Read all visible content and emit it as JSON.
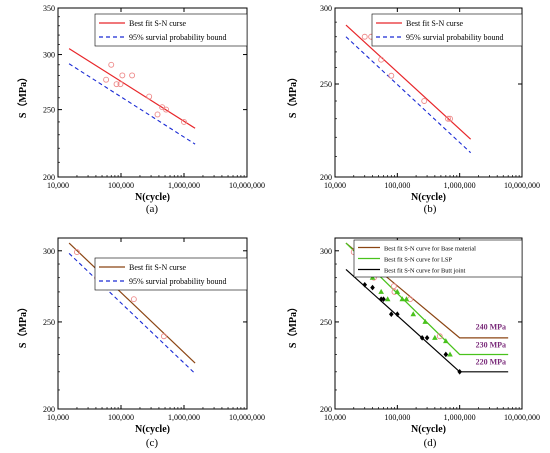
{
  "chart_data": [
    {
      "type": "line",
      "panel_label": "(a)",
      "xlabel": "N(cycle)",
      "ylabel": "S（MPa）",
      "x_scale": "log",
      "y_scale": "log",
      "xlim": [
        10000,
        10000000
      ],
      "ylim": [
        200,
        350
      ],
      "x_ticks": [
        {
          "v": 10000,
          "label": "10,000"
        },
        {
          "v": 100000,
          "label": "100,000"
        },
        {
          "v": 1000000,
          "label": "1,000,000"
        },
        {
          "v": 10000000,
          "label": "10,000,000"
        }
      ],
      "y_ticks": [
        {
          "v": 200,
          "label": "200"
        },
        {
          "v": 250,
          "label": "250"
        },
        {
          "v": 300,
          "label": "300"
        },
        {
          "v": 350,
          "label": "350"
        }
      ],
      "legend_position": "top-right",
      "series": [
        {
          "name": "Best fit S-N curse",
          "kind": "line",
          "style": "solid",
          "color": "#e8262a",
          "x": [
            15000,
            1500000
          ],
          "y": [
            306,
            235
          ]
        },
        {
          "name": "95% survial probability bound",
          "kind": "line",
          "style": "dashed",
          "color": "#1a2ad4",
          "x": [
            15000,
            1500000
          ],
          "y": [
            291,
            223
          ]
        },
        {
          "name": "",
          "kind": "scatter",
          "marker": "circle-open",
          "color": "#ee8a8a",
          "x": [
            58000,
            70000,
            85000,
            98000,
            105000,
            150000,
            280000,
            380000,
            450000,
            520000,
            1000000
          ],
          "y": [
            276,
            290,
            272,
            272,
            280,
            280,
            261,
            246,
            252,
            250,
            240
          ]
        }
      ]
    },
    {
      "type": "line",
      "panel_label": "(b)",
      "xlabel": "N(cycle)",
      "ylabel": "S（MPa）",
      "x_scale": "log",
      "y_scale": "log",
      "xlim": [
        10000,
        10000000
      ],
      "ylim": [
        200,
        300
      ],
      "x_ticks": [
        {
          "v": 10000,
          "label": "10,000"
        },
        {
          "v": 100000,
          "label": "100,000"
        },
        {
          "v": 1000000,
          "label": "1,000,000"
        },
        {
          "v": 10000000,
          "label": "10,000,000"
        }
      ],
      "y_ticks": [
        {
          "v": 200,
          "label": "200"
        },
        {
          "v": 250,
          "label": "250"
        },
        {
          "v": 300,
          "label": "300"
        }
      ],
      "legend_position": "top-right",
      "series": [
        {
          "name": "Best fit S-N curse",
          "kind": "line",
          "style": "solid",
          "color": "#e8262a",
          "x": [
            15000,
            1500000
          ],
          "y": [
            288,
            219
          ]
        },
        {
          "name": "95% survial probability bound",
          "kind": "line",
          "style": "dashed",
          "color": "#1a2ad4",
          "x": [
            15000,
            1500000
          ],
          "y": [
            280,
            212
          ]
        },
        {
          "name": "",
          "kind": "scatter",
          "marker": "circle-open",
          "color": "#ee8a8a",
          "x": [
            30000,
            38000,
            55000,
            80000,
            270000,
            650000,
            700000
          ],
          "y": [
            280,
            280,
            265,
            255,
            240,
            230,
            230
          ]
        }
      ]
    },
    {
      "type": "line",
      "panel_label": "(c)",
      "xlabel": "N(cycle)",
      "ylabel": "S（MPa）",
      "x_scale": "log",
      "y_scale": "log",
      "xlim": [
        10000,
        10000000
      ],
      "ylim": [
        200,
        310
      ],
      "x_ticks": [
        {
          "v": 10000,
          "label": "10,000"
        },
        {
          "v": 100000,
          "label": "100,000"
        },
        {
          "v": 1000000,
          "label": "1,000,000"
        },
        {
          "v": 10000000,
          "label": "10,000,000"
        }
      ],
      "y_ticks": [
        {
          "v": 200,
          "label": "200"
        },
        {
          "v": 250,
          "label": "250"
        },
        {
          "v": 300,
          "label": "300"
        }
      ],
      "legend_position": "top-right",
      "series": [
        {
          "name": "Best fit S-N curse",
          "kind": "line",
          "style": "solid",
          "color": "#8b4513",
          "x": [
            15000,
            1500000
          ],
          "y": [
            306,
            225
          ]
        },
        {
          "name": "95% survial probability bound",
          "kind": "line",
          "style": "dashed",
          "color": "#1a2ad4",
          "x": [
            15000,
            1500000
          ],
          "y": [
            298,
            219
          ]
        },
        {
          "name": "",
          "kind": "scatter",
          "marker": "circle-open",
          "color": "#ee8a8a",
          "x": [
            20000,
            42000,
            88000,
            160000,
            480000
          ],
          "y": [
            299,
            280,
            274,
            265,
            241
          ]
        }
      ]
    },
    {
      "type": "line",
      "panel_label": "(d)",
      "xlabel": "N(cycle)",
      "ylabel": "S（MPa）",
      "x_scale": "log",
      "y_scale": "log",
      "xlim": [
        10000,
        10000000
      ],
      "ylim": [
        200,
        310
      ],
      "x_ticks": [
        {
          "v": 10000,
          "label": "10,000"
        },
        {
          "v": 100000,
          "label": "100,000"
        },
        {
          "v": 1000000,
          "label": "1,000,000"
        },
        {
          "v": 10000000,
          "label": "10,000,000"
        }
      ],
      "y_ticks": [
        {
          "v": 200,
          "label": "200"
        },
        {
          "v": 250,
          "label": "250"
        },
        {
          "v": 300,
          "label": "300"
        }
      ],
      "legend_position": "top-right",
      "annotations": [
        {
          "text": "240 MPa",
          "x": 1800000,
          "y": 244,
          "color": "#7a2a7a"
        },
        {
          "text": "230 MPa",
          "x": 1800000,
          "y": 233,
          "color": "#7a2a7a"
        },
        {
          "text": "220 MPa",
          "x": 1800000,
          "y": 223,
          "color": "#7a2a7a"
        }
      ],
      "series": [
        {
          "name": "Best fit S-N curve for Base material",
          "kind": "line",
          "style": "solid",
          "color": "#8b4513",
          "x": [
            15000,
            1000000,
            6000000
          ],
          "y": [
            306,
            240,
            240
          ]
        },
        {
          "name": "Best fit S-N curve for LSP",
          "kind": "line",
          "style": "solid",
          "color": "#49c21c",
          "x": [
            15000,
            1000000,
            6000000
          ],
          "y": [
            306,
            230,
            230
          ]
        },
        {
          "name": "Best fit S-N curve for Butt joint",
          "kind": "line",
          "style": "solid",
          "color": "#000000",
          "x": [
            15000,
            1000000,
            6000000
          ],
          "y": [
            286,
            220,
            220
          ]
        },
        {
          "name": "",
          "kind": "scatter",
          "marker": "circle-open",
          "color": "#ee8a8a",
          "x": [
            20000,
            42000,
            75000,
            88000,
            90000,
            160000,
            480000
          ],
          "y": [
            299,
            280,
            290,
            274,
            270,
            265,
            241
          ]
        },
        {
          "name": "",
          "kind": "scatter",
          "marker": "triangle",
          "color": "#49c21c",
          "x": [
            40000,
            55000,
            70000,
            100000,
            120000,
            140000,
            180000,
            280000,
            400000,
            600000,
            700000
          ],
          "y": [
            280,
            270,
            265,
            270,
            265,
            265,
            255,
            250,
            240,
            238,
            230
          ]
        },
        {
          "name": "",
          "kind": "scatter",
          "marker": "diamond",
          "color": "#000000",
          "x": [
            30000,
            40000,
            55000,
            60000,
            80000,
            100000,
            250000,
            300000,
            600000,
            1000000
          ],
          "y": [
            275,
            273,
            265,
            265,
            255,
            255,
            240,
            240,
            230,
            220
          ]
        }
      ]
    }
  ]
}
